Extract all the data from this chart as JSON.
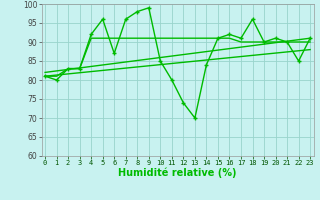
{
  "xlabel": "Humidité relative (%)",
  "background_color": "#c8f2f0",
  "grid_color": "#99d4cc",
  "line_color": "#00bb00",
  "xlim_min": -0.3,
  "xlim_max": 23.3,
  "ylim_min": 60,
  "ylim_max": 100,
  "yticks": [
    60,
    65,
    70,
    75,
    80,
    85,
    90,
    95,
    100
  ],
  "xticks": [
    0,
    1,
    2,
    3,
    4,
    5,
    6,
    7,
    8,
    9,
    10,
    11,
    12,
    13,
    14,
    15,
    16,
    17,
    18,
    19,
    20,
    21,
    22,
    23
  ],
  "series_main_y": [
    81,
    80,
    83,
    83,
    92,
    96,
    87,
    96,
    98,
    99,
    85,
    80,
    74,
    70,
    84,
    91,
    92,
    91,
    96,
    90,
    91,
    90,
    85,
    91
  ],
  "series_flat_y": [
    81,
    81,
    83,
    83,
    91,
    91,
    91,
    91,
    91,
    91,
    91,
    91,
    91,
    91,
    91,
    91,
    91,
    90,
    90,
    90,
    90,
    90,
    90,
    90
  ],
  "trend1_x": [
    0,
    23
  ],
  "trend1_y": [
    81,
    88
  ],
  "trend2_x": [
    0,
    23
  ],
  "trend2_y": [
    82,
    91
  ]
}
